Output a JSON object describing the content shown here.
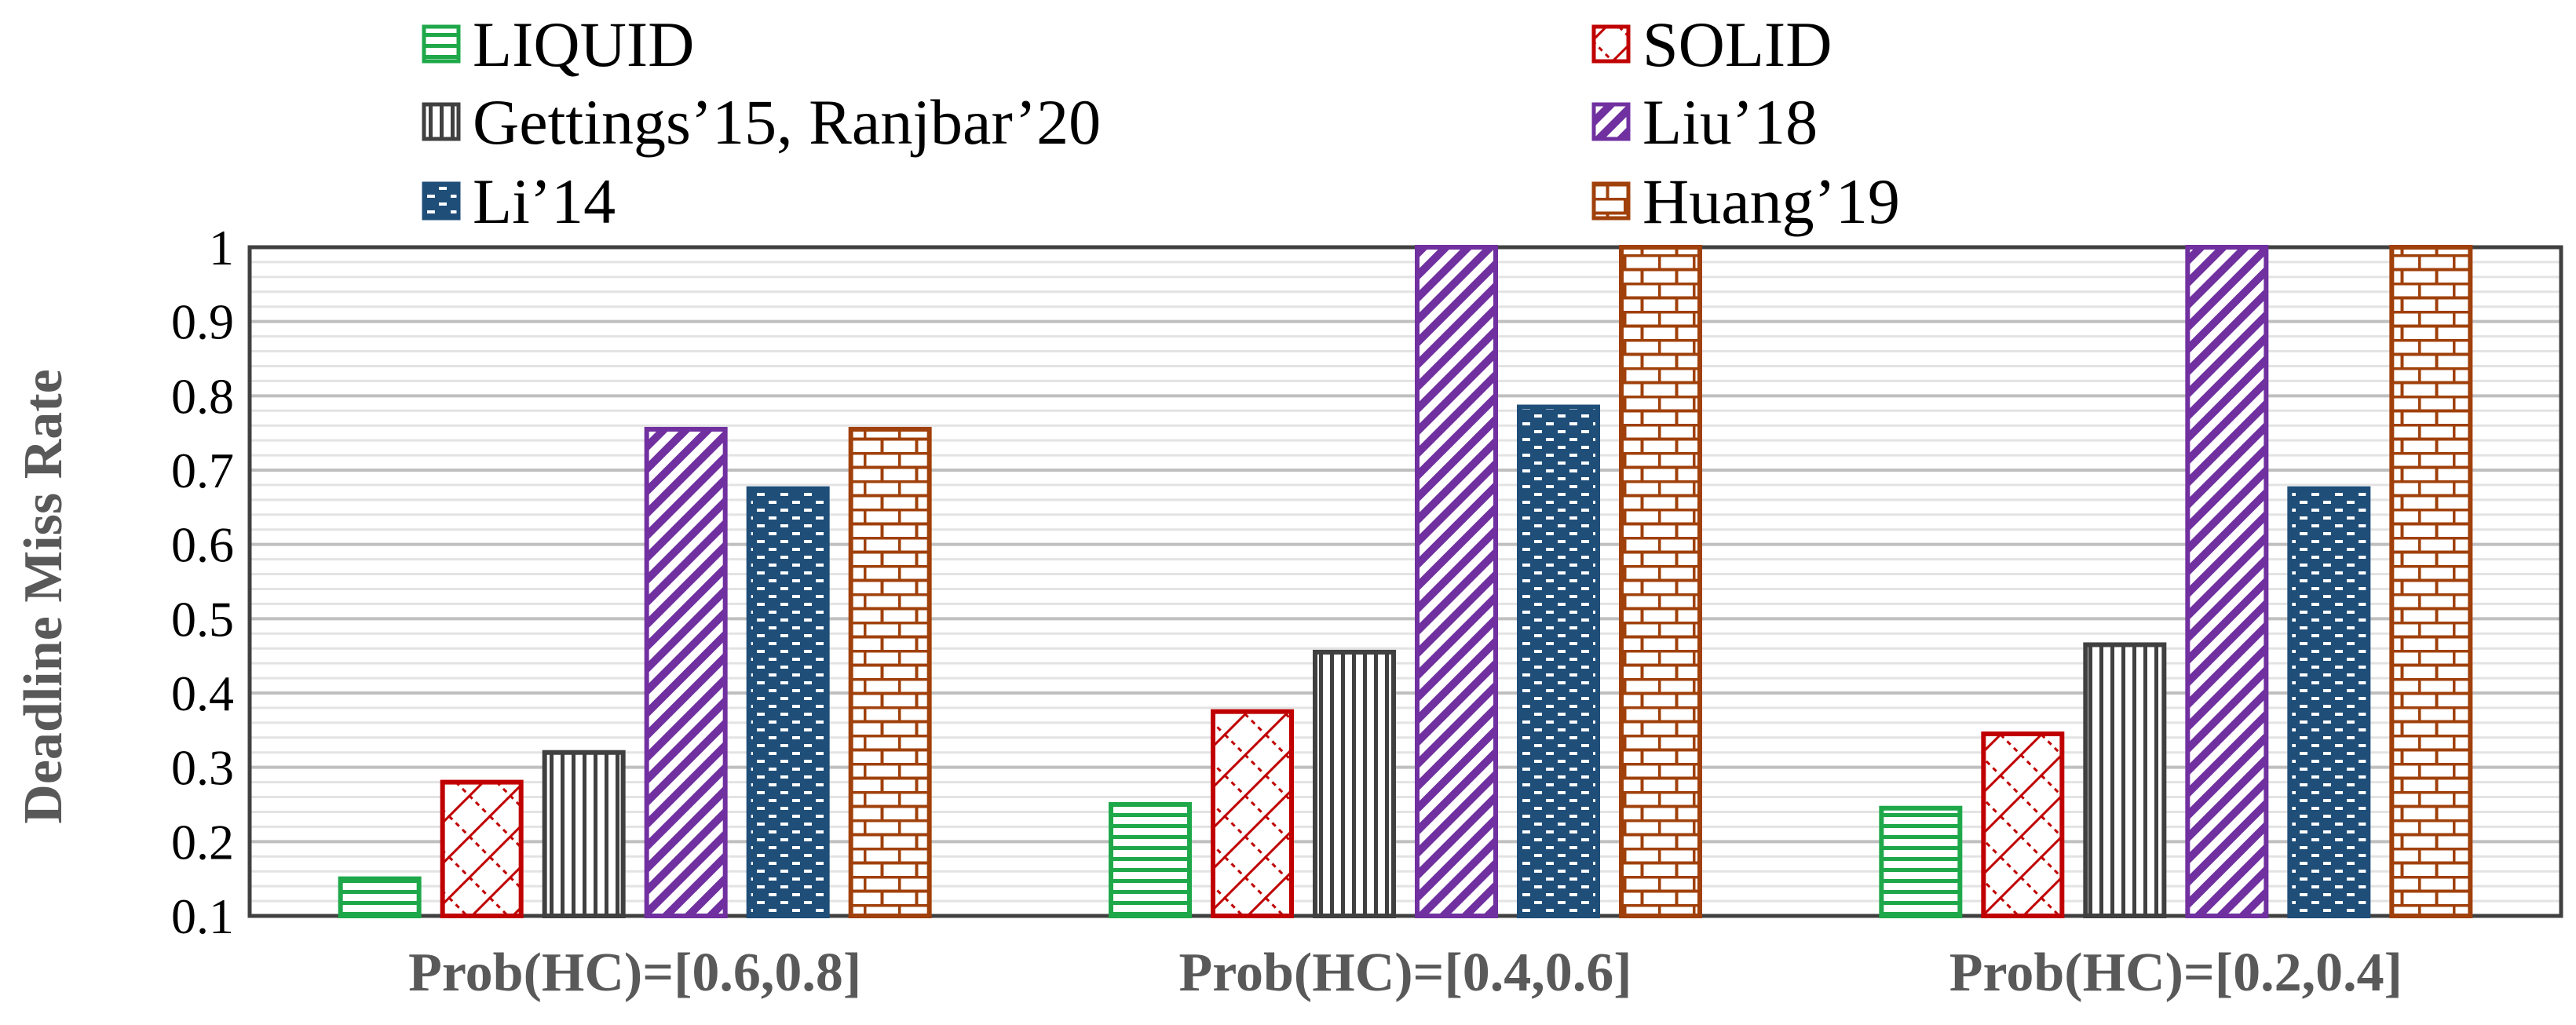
{
  "chart_data": {
    "type": "bar",
    "title": "",
    "xlabel": "",
    "ylabel": "Deadline Miss Rate",
    "ylim": [
      0.1,
      1
    ],
    "yticks": [
      0.1,
      0.2,
      0.3,
      0.4,
      0.5,
      0.6,
      0.7,
      0.8,
      0.9,
      1
    ],
    "ytick_labels": [
      "0.1",
      "0.2",
      "0.3",
      "0.4",
      "0.5",
      "0.6",
      "0.7",
      "0.8",
      "0.9",
      "1"
    ],
    "grid": true,
    "legend_position": "top",
    "categories": [
      "Prob(HC)=[0.6,0.8]",
      "Prob(HC)=[0.4,0.6]",
      "Prob(HC)=[0.2,0.4]"
    ],
    "series": [
      {
        "name": "LIQUID",
        "values": [
          0.15,
          0.25,
          0.245
        ],
        "color": "#1fa84a",
        "pattern": "horizontal-lines"
      },
      {
        "name": "SOLID",
        "values": [
          0.28,
          0.375,
          0.345
        ],
        "color": "#c00000",
        "pattern": "diagonal-cross"
      },
      {
        "name": "Gettings’15, Ranjbar’20",
        "values": [
          0.32,
          0.455,
          0.465
        ],
        "color": "#404040",
        "pattern": "vertical-lines"
      },
      {
        "name": "Liu’18",
        "values": [
          0.755,
          1.0,
          1.0
        ],
        "color": "#7030a0",
        "pattern": "wide-diagonal"
      },
      {
        "name": "Li’14",
        "values": [
          0.675,
          0.785,
          0.675
        ],
        "color": "#1f4e79",
        "pattern": "dashed-brick"
      },
      {
        "name": "Huang’19",
        "values": [
          0.755,
          1.0,
          1.0
        ],
        "color": "#a0400b",
        "pattern": "brick"
      }
    ]
  }
}
